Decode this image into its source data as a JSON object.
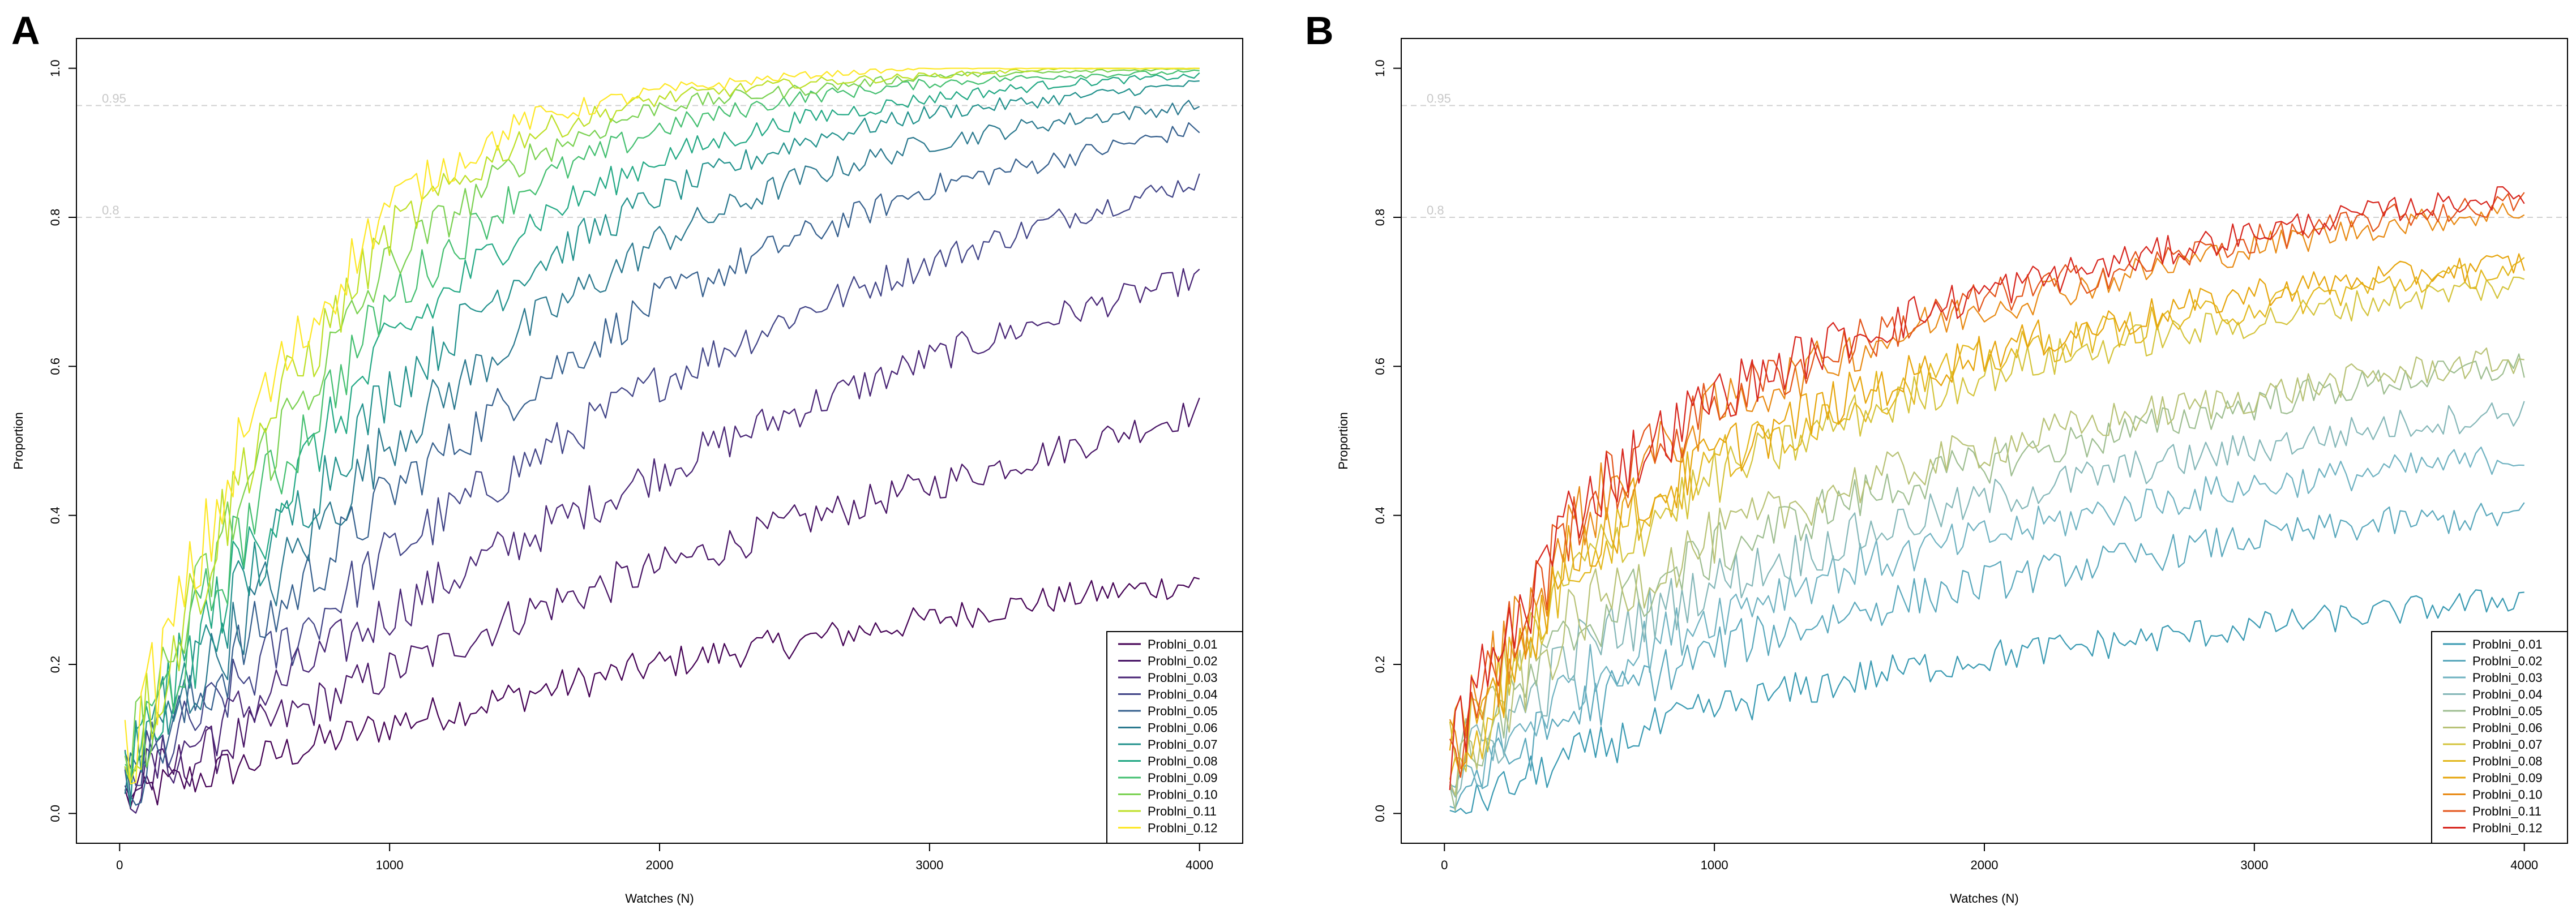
{
  "figure": {
    "panels": [
      "A",
      "B"
    ]
  },
  "chart_data": [
    {
      "panel": "A",
      "type": "line",
      "xlabel": "Watches (N)",
      "ylabel": "Proportion",
      "xlim": [
        0,
        4000
      ],
      "ylim": [
        0,
        1.0
      ],
      "xticks": [
        0,
        1000,
        2000,
        3000,
        4000
      ],
      "yticks": [
        0.0,
        0.2,
        0.4,
        0.6,
        0.8,
        1.0
      ],
      "xtick_labels": [
        "0",
        "1000",
        "2000",
        "3000",
        "4000"
      ],
      "ytick_labels": [
        "0.0",
        "0.2",
        "0.4",
        "0.6",
        "0.8",
        "1.0"
      ],
      "reference_lines": [
        {
          "y": 0.95,
          "label": "0.95"
        },
        {
          "y": 0.8,
          "label": "0.8"
        }
      ],
      "legend_position": "bottom-right",
      "series": [
        {
          "name": "Problni_0.01",
          "color": "#440154",
          "x": [
            20,
            500,
            1000,
            1500,
            2000,
            2500,
            3000,
            3500,
            4000
          ],
          "values": [
            0.02,
            0.07,
            0.12,
            0.16,
            0.2,
            0.23,
            0.26,
            0.29,
            0.31
          ]
        },
        {
          "name": "Problni_0.02",
          "color": "#471365",
          "x": [
            20,
            500,
            1000,
            1500,
            2000,
            2500,
            3000,
            3500,
            4000
          ],
          "values": [
            0.03,
            0.11,
            0.19,
            0.27,
            0.33,
            0.39,
            0.44,
            0.49,
            0.54
          ]
        },
        {
          "name": "Problni_0.03",
          "color": "#482475",
          "x": [
            20,
            500,
            1000,
            1500,
            2000,
            2500,
            3000,
            3500,
            4000
          ],
          "values": [
            0.03,
            0.15,
            0.27,
            0.37,
            0.46,
            0.54,
            0.61,
            0.67,
            0.72
          ]
        },
        {
          "name": "Problni_0.04",
          "color": "#414487",
          "x": [
            20,
            500,
            1000,
            1500,
            2000,
            2500,
            3000,
            3500,
            4000
          ],
          "values": [
            0.04,
            0.19,
            0.35,
            0.47,
            0.58,
            0.67,
            0.74,
            0.8,
            0.85
          ]
        },
        {
          "name": "Problni_0.05",
          "color": "#355f8d",
          "x": [
            20,
            500,
            1000,
            1500,
            2000,
            2500,
            3000,
            3500,
            4000
          ],
          "values": [
            0.04,
            0.24,
            0.43,
            0.57,
            0.69,
            0.77,
            0.84,
            0.88,
            0.92
          ]
        },
        {
          "name": "Problni_0.06",
          "color": "#2a788e",
          "x": [
            20,
            500,
            1000,
            1500,
            2000,
            2500,
            3000,
            3500,
            4000
          ],
          "values": [
            0.04,
            0.28,
            0.5,
            0.65,
            0.77,
            0.85,
            0.9,
            0.93,
            0.95
          ]
        },
        {
          "name": "Problni_0.07",
          "color": "#21918c",
          "x": [
            20,
            500,
            1000,
            1500,
            2000,
            2500,
            3000,
            3500,
            4000
          ],
          "values": [
            0.05,
            0.33,
            0.57,
            0.73,
            0.83,
            0.9,
            0.94,
            0.96,
            0.98
          ]
        },
        {
          "name": "Problni_0.08",
          "color": "#22a884",
          "x": [
            20,
            500,
            1000,
            1500,
            2000,
            2500,
            3000,
            3500,
            4000
          ],
          "values": [
            0.05,
            0.37,
            0.63,
            0.79,
            0.88,
            0.93,
            0.96,
            0.98,
            0.99
          ]
        },
        {
          "name": "Problni_0.09",
          "color": "#44bf70",
          "x": [
            20,
            500,
            1000,
            1500,
            2000,
            2500,
            3000,
            3500,
            4000
          ],
          "values": [
            0.05,
            0.41,
            0.69,
            0.84,
            0.92,
            0.96,
            0.98,
            0.99,
            0.995
          ]
        },
        {
          "name": "Problni_0.10",
          "color": "#7ad151",
          "x": [
            20,
            500,
            1000,
            1500,
            2000,
            2500,
            3000,
            3500,
            4000
          ],
          "values": [
            0.06,
            0.46,
            0.74,
            0.88,
            0.95,
            0.97,
            0.99,
            0.995,
            1.0
          ]
        },
        {
          "name": "Problni_0.11",
          "color": "#bddf26",
          "x": [
            20,
            500,
            1000,
            1500,
            2000,
            2500,
            3000,
            3500,
            4000
          ],
          "values": [
            0.06,
            0.5,
            0.78,
            0.91,
            0.96,
            0.98,
            0.99,
            1.0,
            1.0
          ]
        },
        {
          "name": "Problni_0.12",
          "color": "#fde725",
          "x": [
            20,
            500,
            1000,
            1500,
            2000,
            2500,
            3000,
            3500,
            4000
          ],
          "values": [
            0.07,
            0.54,
            0.82,
            0.93,
            0.97,
            0.99,
            1.0,
            1.0,
            1.0
          ]
        }
      ]
    },
    {
      "panel": "B",
      "type": "line",
      "xlabel": "Watches (N)",
      "ylabel": "Proportion",
      "xlim": [
        0,
        4000
      ],
      "ylim": [
        0,
        1.0
      ],
      "xticks": [
        0,
        1000,
        2000,
        3000,
        4000
      ],
      "yticks": [
        0.0,
        0.2,
        0.4,
        0.6,
        0.8,
        1.0
      ],
      "xtick_labels": [
        "0",
        "1000",
        "2000",
        "3000",
        "4000"
      ],
      "ytick_labels": [
        "0.0",
        "0.2",
        "0.4",
        "0.6",
        "0.8",
        "1.0"
      ],
      "reference_lines": [
        {
          "y": 0.95,
          "label": "0.95"
        },
        {
          "y": 0.8,
          "label": "0.8"
        }
      ],
      "legend_position": "bottom-right",
      "series": [
        {
          "name": "Problni_0.01",
          "color": "#3a9ab2",
          "x": [
            20,
            500,
            1000,
            1500,
            2000,
            2500,
            3000,
            3500,
            4000
          ],
          "values": [
            0.0,
            0.08,
            0.14,
            0.18,
            0.21,
            0.23,
            0.25,
            0.27,
            0.29
          ]
        },
        {
          "name": "Problni_0.02",
          "color": "#5aa8bc",
          "x": [
            20,
            500,
            1000,
            1500,
            2000,
            2500,
            3000,
            3500,
            4000
          ],
          "values": [
            0.02,
            0.14,
            0.22,
            0.27,
            0.31,
            0.34,
            0.37,
            0.39,
            0.4
          ]
        },
        {
          "name": "Problni_0.03",
          "color": "#6fb2c1",
          "x": [
            20,
            500,
            1000,
            1500,
            2000,
            2500,
            3000,
            3500,
            4000
          ],
          "values": [
            0.03,
            0.18,
            0.27,
            0.33,
            0.37,
            0.41,
            0.44,
            0.46,
            0.48
          ]
        },
        {
          "name": "Problni_0.04",
          "color": "#85b7b8",
          "x": [
            20,
            500,
            1000,
            1500,
            2000,
            2500,
            3000,
            3500,
            4000
          ],
          "values": [
            0.04,
            0.22,
            0.31,
            0.37,
            0.42,
            0.46,
            0.49,
            0.52,
            0.54
          ]
        },
        {
          "name": "Problni_0.05",
          "color": "#9ebe91",
          "x": [
            20,
            500,
            1000,
            1500,
            2000,
            2500,
            3000,
            3500,
            4000
          ],
          "values": [
            0.05,
            0.25,
            0.35,
            0.42,
            0.47,
            0.51,
            0.55,
            0.58,
            0.6
          ]
        },
        {
          "name": "Problni_0.06",
          "color": "#b8c276",
          "x": [
            20,
            500,
            1000,
            1500,
            2000,
            2500,
            3000,
            3500,
            4000
          ],
          "values": [
            0.05,
            0.27,
            0.37,
            0.44,
            0.49,
            0.53,
            0.56,
            0.59,
            0.61
          ]
        },
        {
          "name": "Problni_0.07",
          "color": "#d4c43c",
          "x": [
            20,
            500,
            1000,
            1500,
            2000,
            2500,
            3000,
            3500,
            4000
          ],
          "values": [
            0.06,
            0.33,
            0.45,
            0.53,
            0.59,
            0.63,
            0.66,
            0.69,
            0.71
          ]
        },
        {
          "name": "Problni_0.08",
          "color": "#e2b81e",
          "x": [
            20,
            500,
            1000,
            1500,
            2000,
            2500,
            3000,
            3500,
            4000
          ],
          "values": [
            0.06,
            0.35,
            0.47,
            0.55,
            0.61,
            0.65,
            0.68,
            0.71,
            0.73
          ]
        },
        {
          "name": "Problni_0.09",
          "color": "#e6a50c",
          "x": [
            20,
            500,
            1000,
            1500,
            2000,
            2500,
            3000,
            3500,
            4000
          ],
          "values": [
            0.07,
            0.36,
            0.48,
            0.56,
            0.62,
            0.66,
            0.7,
            0.72,
            0.74
          ]
        },
        {
          "name": "Problni_0.10",
          "color": "#e88a14",
          "x": [
            20,
            500,
            1000,
            1500,
            2000,
            2500,
            3000,
            3500,
            4000
          ],
          "values": [
            0.08,
            0.4,
            0.54,
            0.62,
            0.68,
            0.72,
            0.76,
            0.79,
            0.81
          ]
        },
        {
          "name": "Problni_0.11",
          "color": "#e3541a",
          "x": [
            20,
            500,
            1000,
            1500,
            2000,
            2500,
            3000,
            3500,
            4000
          ],
          "values": [
            0.08,
            0.41,
            0.55,
            0.63,
            0.69,
            0.73,
            0.77,
            0.8,
            0.82
          ]
        },
        {
          "name": "Problni_0.12",
          "color": "#d7261e",
          "x": [
            20,
            500,
            1000,
            1500,
            2000,
            2500,
            3000,
            3500,
            4000
          ],
          "values": [
            0.09,
            0.42,
            0.56,
            0.64,
            0.7,
            0.74,
            0.78,
            0.81,
            0.83
          ]
        }
      ]
    }
  ]
}
